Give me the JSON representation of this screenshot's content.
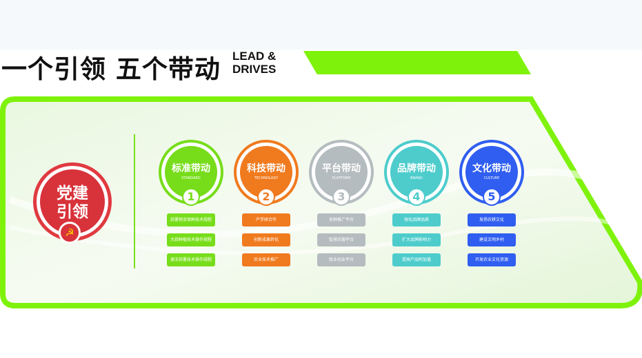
{
  "header": {
    "title": "一个引领 五个带动",
    "title_en_line1": "LEAD &",
    "title_en_line2": "DRIVES"
  },
  "lead": {
    "line1": "党建",
    "line2": "引领",
    "icon": "party-emblem-icon"
  },
  "colors": {
    "accent_green": "#7ff20c",
    "lead_red": "#d8323a"
  },
  "columns": [
    {
      "title": "标准带动",
      "subtitle": "STANDARD",
      "number": "1",
      "color": "#77dd1a",
      "items": [
        "蒜薹物流保鲜技术规程",
        "大蒜种植技术操作规程",
        "速冻蒜薹技术操作规程"
      ]
    },
    {
      "title": "科技带动",
      "subtitle": "TECHNOLOGY",
      "number": "2",
      "color": "#f07a1e",
      "items": [
        "产学研合作",
        "创新成果转化",
        "农业技术推广"
      ]
    },
    {
      "title": "平台带动",
      "subtitle": "PLATFORM",
      "number": "3",
      "color": "#b4bcbf",
      "items": [
        "良种推广平台",
        "智慧农服平台",
        "就业创业平台"
      ]
    },
    {
      "title": "品牌带动",
      "subtitle": "BRAND",
      "number": "4",
      "color": "#4ecccc",
      "items": [
        "强化品牌品质",
        "扩大品牌影响力",
        "提高产品附加值"
      ]
    },
    {
      "title": "文化带动",
      "subtitle": "CULTURE",
      "number": "5",
      "color": "#2f5ef0",
      "items": [
        "发扬农耕文化",
        "建设文明乡村",
        "开发农业文化资源"
      ]
    }
  ]
}
